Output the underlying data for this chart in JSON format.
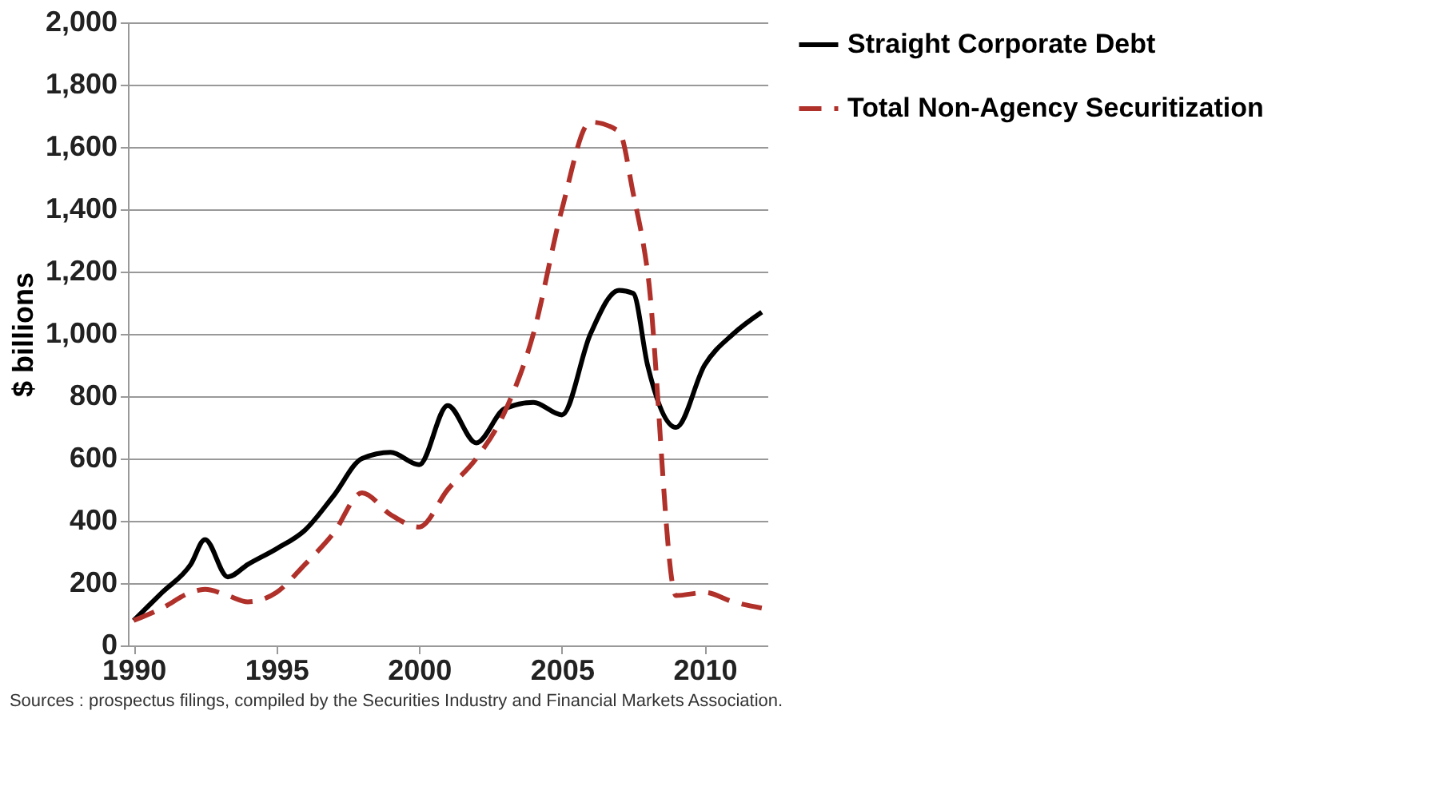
{
  "chart_data": {
    "type": "line",
    "ylabel": "$ billions",
    "x": [
      1990,
      1991,
      1992,
      1992.5,
      1993.3,
      1994,
      1995,
      1996,
      1997,
      1998,
      1999,
      2000,
      2001,
      2002,
      2003,
      2004,
      2005,
      2006,
      2007,
      2007.5,
      2008,
      2009,
      2010,
      2011,
      2012
    ],
    "series": [
      {
        "name": "Straight Corporate Debt",
        "color": "#000000",
        "line_style": "solid",
        "values": [
          80,
          170,
          260,
          340,
          220,
          260,
          310,
          370,
          480,
          600,
          620,
          580,
          770,
          650,
          760,
          780,
          740,
          1000,
          1140,
          1130,
          900,
          700,
          900,
          1000,
          1070
        ]
      },
      {
        "name": "Total Non-Agency Securitization",
        "color": "#b0302a",
        "line_style": "dashed",
        "values": [
          80,
          120,
          170,
          180,
          160,
          140,
          170,
          260,
          360,
          490,
          420,
          380,
          500,
          600,
          750,
          1000,
          1400,
          1680,
          1650,
          1450,
          1200,
          160,
          170,
          140,
          120
        ]
      }
    ],
    "xlim": [
      1989.8,
      2012.2
    ],
    "xticks": [
      1990,
      1995,
      2000,
      2005,
      2010
    ],
    "ylim": [
      0,
      2000
    ],
    "yticks": [
      0,
      200,
      400,
      600,
      800,
      {
        "value": 1000,
        "label": "1,000"
      },
      {
        "value": 1200,
        "label": "1,200"
      },
      {
        "value": 1400,
        "label": "1,400"
      },
      {
        "value": 1600,
        "label": "1,600"
      },
      {
        "value": 1800,
        "label": "1,800"
      },
      {
        "value": 2000,
        "label": "2,000"
      }
    ],
    "grid": "y",
    "legend": "right",
    "marker": "none",
    "annotations": [
      "Sources : prospectus filings, compiled by the Securities Industry and Financial Markets Association."
    ]
  }
}
